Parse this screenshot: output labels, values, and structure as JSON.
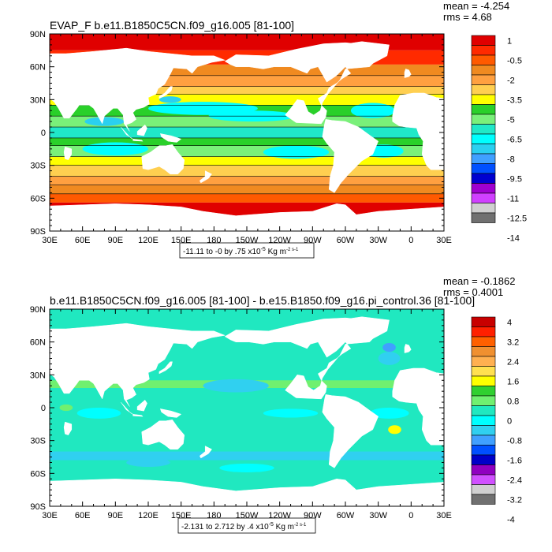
{
  "chart_data": [
    {
      "type": "heatmap",
      "title": "EVAP_F b.e11.B1850C5CN.f09_g16.005 [81-100]",
      "stats": {
        "mean": "mean = -4.254",
        "rms": "rms = 4.68"
      },
      "range_note": "-11.11 to -0 by .75 x10",
      "note_exp": "-5",
      "note_unit": " Kg m",
      "note_unit_exp": "-2 s-1",
      "x_ticks": [
        "30E",
        "60E",
        "90E",
        "120E",
        "150E",
        "180",
        "150W",
        "120W",
        "90W",
        "60W",
        "30W",
        "0",
        "30E"
      ],
      "y_ticks": [
        "90N",
        "60N",
        "30N",
        "0",
        "30S",
        "60S",
        "90S"
      ],
      "xlim": [
        30,
        390
      ],
      "ylim": [
        -90,
        90
      ],
      "colorbar": {
        "labels": [
          "1",
          "-0.5",
          "-2",
          "-3.5",
          "-5",
          "-6.5",
          "-8",
          "-9.5",
          "-11",
          "-12.5",
          "-14"
        ],
        "colors": [
          "#e00000",
          "#ff2a00",
          "#ff5a00",
          "#f08a20",
          "#ffa040",
          "#ffcf50",
          "#ffff00",
          "#2ad02a",
          "#7af07a",
          "#20e8c8",
          "#00ffff",
          "#2ad0f0",
          "#40a0ff",
          "#0050ff",
          "#0000d0",
          "#a000d0",
          "#d040ff",
          "#d0d0d0",
          "#707070"
        ]
      }
    },
    {
      "type": "heatmap",
      "title": "b.e11.B1850C5CN.f09_g16.005 [81-100] - b.e15.B1850.f09_g16.pi_control.36 [81-100]",
      "stats": {
        "mean": "mean = -0.1862",
        "rms": "rms = 0.4001"
      },
      "range_note": "-2.131 to 2.712 by .4 x10",
      "note_exp": "-5",
      "note_unit": " Kg m",
      "note_unit_exp": "-2 s-1",
      "x_ticks": [
        "30E",
        "60E",
        "90E",
        "120E",
        "150E",
        "180",
        "150W",
        "120W",
        "90W",
        "60W",
        "30W",
        "0",
        "30E"
      ],
      "y_ticks": [
        "90N",
        "60N",
        "30N",
        "0",
        "30S",
        "60S",
        "90S"
      ],
      "xlim": [
        30,
        390
      ],
      "ylim": [
        -90,
        90
      ],
      "colorbar": {
        "labels": [
          "4",
          "3.2",
          "2.4",
          "1.6",
          "0.8",
          "0",
          "-0.8",
          "-1.6",
          "-2.4",
          "-3.2",
          "-4"
        ],
        "colors": [
          "#c80000",
          "#ff2000",
          "#ff6000",
          "#f09030",
          "#ffb050",
          "#ffe050",
          "#ffff00",
          "#30d030",
          "#70f070",
          "#20e8c0",
          "#00ffff",
          "#30d0f0",
          "#40a0ff",
          "#0050ff",
          "#0000c8",
          "#9000c0",
          "#d050ff",
          "#d0d0d0",
          "#707070"
        ]
      }
    }
  ]
}
